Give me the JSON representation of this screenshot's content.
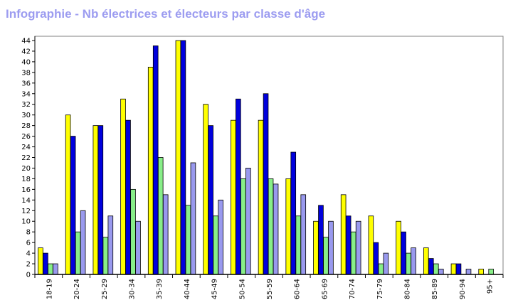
{
  "title": "Infographie - Nb électrices et électeurs par classe d'âge",
  "colors": {
    "title": "#9c9cf0",
    "series": [
      "#ffff00",
      "#0000dd",
      "#88ee88",
      "#9999ee"
    ]
  },
  "chart_data": {
    "type": "bar",
    "title": "Infographie - Nb électrices et électeurs par classe d'âge",
    "xlabel": "",
    "ylabel": "",
    "ylim": [
      0,
      44
    ],
    "yticks": [
      0,
      2,
      4,
      6,
      8,
      10,
      12,
      14,
      16,
      18,
      20,
      22,
      24,
      26,
      28,
      30,
      32,
      34,
      36,
      38,
      40,
      42,
      44
    ],
    "grid": false,
    "categories": [
      "18-19",
      "20-24",
      "25-29",
      "30-34",
      "35-39",
      "40-44",
      "45-49",
      "50-54",
      "55-59",
      "60-64",
      "65-69",
      "70-74",
      "75-79",
      "80-84",
      "85-89",
      "90-94",
      "95+"
    ],
    "series": [
      {
        "values": [
          5,
          30,
          28,
          33,
          39,
          44,
          32,
          29,
          29,
          18,
          10,
          15,
          11,
          10,
          5,
          2,
          1
        ]
      },
      {
        "values": [
          4,
          26,
          28,
          29,
          43,
          44,
          28,
          33,
          34,
          23,
          13,
          11,
          6,
          8,
          3,
          2,
          0
        ]
      },
      {
        "values": [
          2,
          8,
          7,
          16,
          22,
          13,
          11,
          18,
          18,
          11,
          7,
          8,
          2,
          4,
          2,
          0,
          1
        ]
      },
      {
        "values": [
          2,
          12,
          11,
          10,
          15,
          21,
          14,
          20,
          17,
          15,
          10,
          10,
          4,
          5,
          1,
          1,
          0
        ]
      }
    ]
  }
}
